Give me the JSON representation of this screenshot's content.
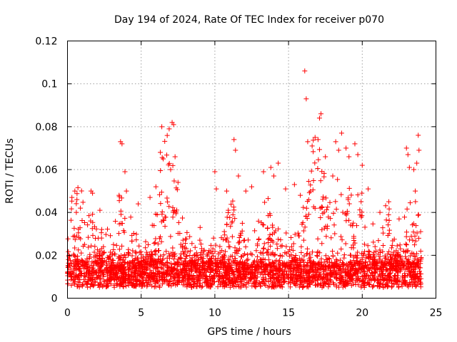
{
  "chart_data": {
    "type": "scatter",
    "title": "Day 194 of 2024, Rate Of TEC Index for receiver p070",
    "xlabel": "GPS time / hours",
    "ylabel": "ROTI / TECUs",
    "xlim": [
      0,
      25
    ],
    "ylim": [
      0,
      0.12
    ],
    "x_ticks": [
      0,
      5,
      10,
      15,
      20,
      25
    ],
    "y_ticks": [
      0,
      0.02,
      0.04,
      0.06,
      0.08,
      0.1,
      0.12
    ],
    "x_tick_labels": [
      "0",
      "5",
      "10",
      "15",
      "20",
      "25"
    ],
    "y_tick_labels": [
      "0",
      "0.02",
      "0.04",
      "0.06",
      "0.08",
      "0.1",
      "0.12"
    ],
    "grid": true,
    "marker": "+",
    "series": [
      {
        "name": "ROTI",
        "color": "#ff0000",
        "note": "dense cloud of several thousand points, baseline ~0.005-0.02, sample outliers listed",
        "points": [
          [
            0.1,
            0.02
          ],
          [
            0.3,
            0.047
          ],
          [
            0.5,
            0.05
          ],
          [
            0.6,
            0.04
          ],
          [
            1.6,
            0.05
          ],
          [
            1.7,
            0.049
          ],
          [
            2.2,
            0.041
          ],
          [
            3.5,
            0.048
          ],
          [
            3.6,
            0.073
          ],
          [
            3.7,
            0.072
          ],
          [
            3.9,
            0.059
          ],
          [
            4.0,
            0.05
          ],
          [
            4.8,
            0.044
          ],
          [
            5.6,
            0.047
          ],
          [
            6.0,
            0.052
          ],
          [
            6.3,
            0.068
          ],
          [
            6.4,
            0.08
          ],
          [
            6.5,
            0.065
          ],
          [
            6.9,
            0.079
          ],
          [
            7.1,
            0.082
          ],
          [
            7.2,
            0.081
          ],
          [
            7.0,
            0.06
          ],
          [
            7.3,
            0.066
          ],
          [
            7.5,
            0.054
          ],
          [
            9.0,
            0.033
          ],
          [
            10.0,
            0.059
          ],
          [
            10.1,
            0.051
          ],
          [
            10.8,
            0.05
          ],
          [
            11.3,
            0.074
          ],
          [
            11.4,
            0.069
          ],
          [
            11.6,
            0.057
          ],
          [
            12.1,
            0.05
          ],
          [
            12.5,
            0.052
          ],
          [
            13.3,
            0.059
          ],
          [
            13.8,
            0.061
          ],
          [
            14.0,
            0.057
          ],
          [
            14.3,
            0.063
          ],
          [
            14.8,
            0.051
          ],
          [
            15.4,
            0.053
          ],
          [
            15.8,
            0.048
          ],
          [
            16.1,
            0.106
          ],
          [
            16.2,
            0.093
          ],
          [
            16.3,
            0.073
          ],
          [
            16.6,
            0.071
          ],
          [
            16.8,
            0.075
          ],
          [
            17.0,
            0.074
          ],
          [
            17.1,
            0.084
          ],
          [
            17.2,
            0.086
          ],
          [
            17.5,
            0.066
          ],
          [
            18.0,
            0.057
          ],
          [
            18.2,
            0.073
          ],
          [
            18.4,
            0.069
          ],
          [
            18.6,
            0.077
          ],
          [
            18.9,
            0.07
          ],
          [
            19.1,
            0.066
          ],
          [
            19.5,
            0.072
          ],
          [
            19.7,
            0.067
          ],
          [
            20.0,
            0.062
          ],
          [
            20.4,
            0.051
          ],
          [
            21.2,
            0.04
          ],
          [
            21.8,
            0.045
          ],
          [
            22.5,
            0.037
          ],
          [
            23.0,
            0.07
          ],
          [
            23.1,
            0.067
          ],
          [
            23.2,
            0.061
          ],
          [
            23.5,
            0.06
          ],
          [
            23.7,
            0.063
          ],
          [
            23.8,
            0.076
          ],
          [
            23.85,
            0.069
          ],
          [
            23.6,
            0.05
          ]
        ]
      }
    ]
  }
}
